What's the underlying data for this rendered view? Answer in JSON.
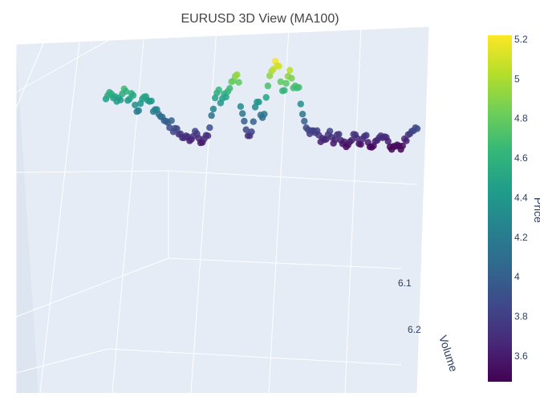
{
  "chart_data": {
    "type": "scatter",
    "title": "EURUSD 3D View (MA100)",
    "axis_labels": {
      "y": "Volume",
      "colorbar": "Price"
    },
    "axis_ticks": {
      "y": [
        "6.1",
        "6.2"
      ]
    },
    "colorscale": "viridis",
    "colorbar": {
      "range": [
        3.47,
        5.22
      ],
      "ticks": [
        "3.6",
        "3.8",
        "4",
        "4.2",
        "4.4",
        "4.6",
        "4.8",
        "5",
        "5.2"
      ]
    },
    "colors": {
      "background_scene": "#e5ecf6",
      "grid": "#ffffff",
      "title": "#444444",
      "missing_value": "#666666"
    },
    "series": [
      {
        "name": "",
        "values": [
          4.45,
          4.52,
          4.58,
          4.55,
          4.47,
          4.5,
          4.4,
          4.47,
          4.43,
          4.55,
          4.65,
          4.6,
          4.42,
          4.45,
          4.56,
          4.52,
          4.33,
          4.2,
          4.22,
          4.36,
          4.45,
          4.49,
          4.5,
          4.42,
          4.4,
          4.41,
          4.2,
          4.24,
          4.24,
          4.15,
          4.1,
          4.09,
          4.02,
          4.01,
          3.98,
          3.88,
          4.02,
          3.8,
          3.87,
          3.86,
          3.75,
          3.76,
          3.68,
          3.68,
          3.72,
          3.7,
          3.62,
          3.65,
          3.71,
          3.81,
          3.76,
          3.67,
          3.58,
          3.59,
          3.66,
          3.73,
          3.72,
          3.88,
          4.12,
          4.25,
          4.47,
          4.57,
          4.63,
          4.37,
          4.46,
          4.55,
          4.49,
          4.6,
          4.66,
          4.79,
          4.81,
          4.9,
          4.93,
          4.78,
          4.3,
          4.16,
          4.01,
          3.84,
          3.72,
          3.72,
          3.8,
          4.0,
          4.29,
          4.39,
          4.39,
          4.13,
          4.08,
          4.15,
          4.48,
          4.71,
          4.91,
          5.0,
          5.04,
          5.2,
          5.11,
          5.1,
          4.79,
          4.61,
          4.62,
          4.76,
          4.9,
          5.02,
          4.86,
          4.67,
          4.71,
          4.67,
          4.68,
          4.35,
          4.15,
          4.01,
          3.88,
          3.84,
          3.76,
          3.82,
          3.82,
          3.78,
          3.82,
          3.73,
          3.6,
          3.67,
          3.64,
          3.65,
          3.74,
          3.81,
          3.69,
          3.57,
          3.64,
          3.74,
          3.75,
          3.63,
          3.56,
          3.6,
          3.5,
          3.54,
          3.6,
          3.63,
          3.75,
          3.74,
          3.67,
          3.56,
          3.55,
          3.66,
          3.71,
          3.73,
          3.59,
          3.5,
          3.49,
          3.52,
          3.61,
          3.63,
          3.68,
          3.72,
          3.68,
          3.7,
          3.69,
          3.61,
          3.5,
          3.45,
          3.51,
          3.51,
          3.54,
          3.52,
          3.45,
          3.52,
          3.66,
          3.62,
          3.74,
          3.76,
          3.81,
          3.82,
          3.88,
          3.86
        ]
      }
    ]
  }
}
